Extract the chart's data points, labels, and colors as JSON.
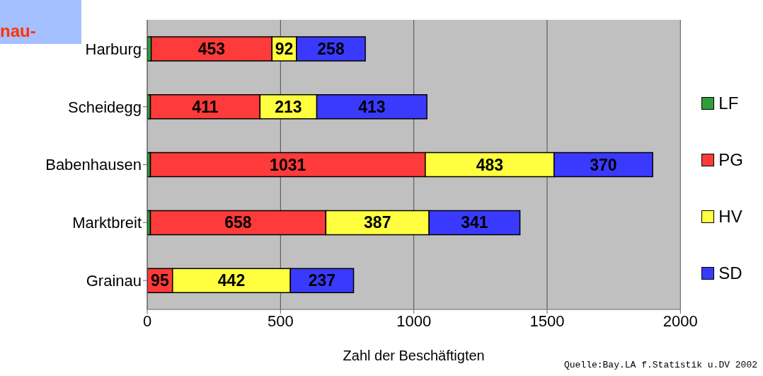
{
  "chart_data": {
    "type": "bar",
    "orientation": "horizontal",
    "stacked": true,
    "categories": [
      "Harburg",
      "Scheidegg",
      "Babenhausen",
      "Marktbreit",
      "Grainau"
    ],
    "series": [
      {
        "name": "LF",
        "color": "#2e9e3a",
        "values": [
          15,
          12,
          12,
          12,
          0
        ],
        "value_labels": [
          null,
          null,
          null,
          null,
          null
        ]
      },
      {
        "name": "PG",
        "color": "#ff3a3a",
        "values": [
          453,
          411,
          1031,
          658,
          95
        ],
        "value_labels": [
          "453",
          "411",
          "1031",
          "658",
          "95"
        ]
      },
      {
        "name": "HV",
        "color": "#ffff40",
        "values": [
          92,
          213,
          483,
          387,
          442
        ],
        "value_labels": [
          "92",
          "213",
          "483",
          "387",
          "442"
        ]
      },
      {
        "name": "SD",
        "color": "#3a3aff",
        "values": [
          258,
          413,
          370,
          341,
          237
        ],
        "value_labels": [
          "258",
          "413",
          "370",
          "341",
          "237"
        ]
      }
    ],
    "xlabel": "Zahl der Beschäftigten",
    "xlim": [
      0,
      2000
    ],
    "xticks": [
      0,
      500,
      1000,
      1500,
      2000
    ],
    "grid": "x",
    "legend": "right",
    "annotations": [
      "nau-",
      "Quelle:Bay.LA f.Statistik u.DV 2002"
    ]
  }
}
